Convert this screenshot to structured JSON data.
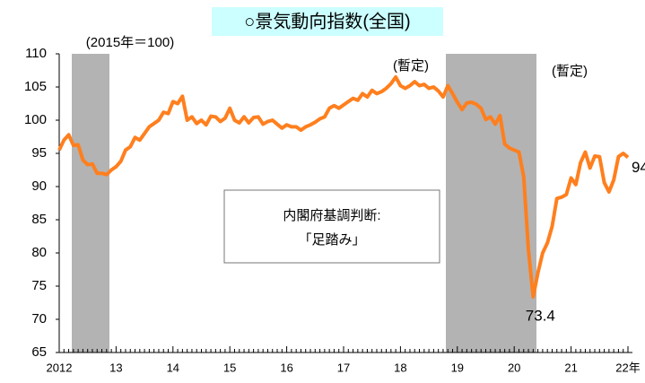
{
  "chart_data": {
    "type": "line",
    "title": "○景気動向指数(全国)",
    "subtitle": "(2015年＝100)",
    "annotations": [
      "(暫定)",
      "(暫定)"
    ],
    "box_text": [
      "内閣府基調判断:",
      "「足踏み」"
    ],
    "categories": [
      "2012",
      null,
      null,
      null,
      null,
      null,
      null,
      null,
      null,
      null,
      null,
      null,
      "13",
      null,
      null,
      null,
      null,
      null,
      null,
      null,
      null,
      null,
      null,
      null,
      "14",
      null,
      null,
      null,
      null,
      null,
      null,
      null,
      null,
      null,
      null,
      null,
      "15",
      null,
      null,
      null,
      null,
      null,
      null,
      null,
      null,
      null,
      null,
      null,
      "16",
      null,
      null,
      null,
      null,
      null,
      null,
      null,
      null,
      null,
      null,
      null,
      "17",
      null,
      null,
      null,
      null,
      null,
      null,
      null,
      null,
      null,
      null,
      null,
      "18",
      null,
      null,
      null,
      null,
      null,
      null,
      null,
      null,
      null,
      null,
      null,
      "19",
      null,
      null,
      null,
      null,
      null,
      null,
      null,
      null,
      null,
      null,
      null,
      "20",
      null,
      null,
      null,
      null,
      null,
      null,
      null,
      null,
      null,
      null,
      null,
      "21",
      null,
      null,
      null,
      null,
      null,
      null,
      null,
      null,
      null,
      null,
      null,
      "22年"
    ],
    "values": [
      95.5,
      97,
      97.8,
      96.2,
      96.3,
      94,
      93.3,
      93.4,
      92,
      92,
      91.8,
      92.5,
      93,
      93.8,
      95.5,
      96,
      97.4,
      97,
      98,
      99,
      99.5,
      100,
      101.2,
      101,
      102.8,
      102.5,
      103.6,
      100,
      100.5,
      99.5,
      100,
      99.3,
      100.6,
      100.5,
      99.8,
      100.3,
      101.8,
      100,
      99.6,
      100.5,
      99.6,
      100.4,
      100.5,
      99.4,
      99.8,
      100,
      99.4,
      98.8,
      99.3,
      99,
      99,
      98.5,
      99,
      99.3,
      99.7,
      100.2,
      100.5,
      101.8,
      102.2,
      101.8,
      102.3,
      102.8,
      103.3,
      103,
      104,
      103.5,
      104.5,
      104,
      104.3,
      104.8,
      105.5,
      106.5,
      105.2,
      104.8,
      105.2,
      105.8,
      105.2,
      105.4,
      104.8,
      105,
      104.4,
      103.5,
      105.2,
      104,
      102.7,
      101.6,
      102.6,
      102.7,
      102.4,
      101.8,
      100.1,
      100.5,
      99.4,
      100.7,
      96.4,
      95.8,
      95.5,
      95.2,
      91.5,
      80.5,
      73.4,
      77,
      80,
      81.5,
      84,
      88.2,
      88.4,
      88.8,
      91.3,
      90.3,
      93.6,
      95.2,
      92.8,
      94.6,
      94.5,
      90.6,
      89.2,
      91,
      94.5,
      95,
      94.4
    ],
    "value_labels": [
      null,
      null,
      null,
      null,
      null,
      null,
      null,
      null,
      null,
      null,
      null,
      null,
      null,
      null,
      null,
      null,
      null,
      null,
      null,
      null,
      null,
      null,
      null,
      null,
      null,
      null,
      null,
      null,
      null,
      null,
      null,
      null,
      null,
      null,
      null,
      null,
      null,
      null,
      null,
      null,
      null,
      null,
      null,
      null,
      null,
      null,
      null,
      null,
      null,
      null,
      null,
      null,
      null,
      null,
      null,
      null,
      null,
      null,
      null,
      null,
      null,
      null,
      null,
      null,
      null,
      null,
      null,
      null,
      null,
      null,
      null,
      null,
      null,
      null,
      null,
      null,
      null,
      null,
      null,
      null,
      null,
      null,
      null,
      null,
      null,
      null,
      null,
      null,
      null,
      null,
      null,
      null,
      null,
      null,
      null,
      null,
      null,
      null,
      null,
      null,
      "73.4",
      null,
      null,
      null,
      null,
      null,
      null,
      null,
      null,
      null,
      null,
      null,
      null,
      null,
      null,
      null,
      null,
      null,
      null,
      null,
      "94"
    ],
    "color": "#ff7f1e",
    "ylim": [
      65,
      110
    ],
    "yticks": [
      65,
      70,
      75,
      80,
      85,
      90,
      95,
      100,
      105,
      110
    ]
  }
}
